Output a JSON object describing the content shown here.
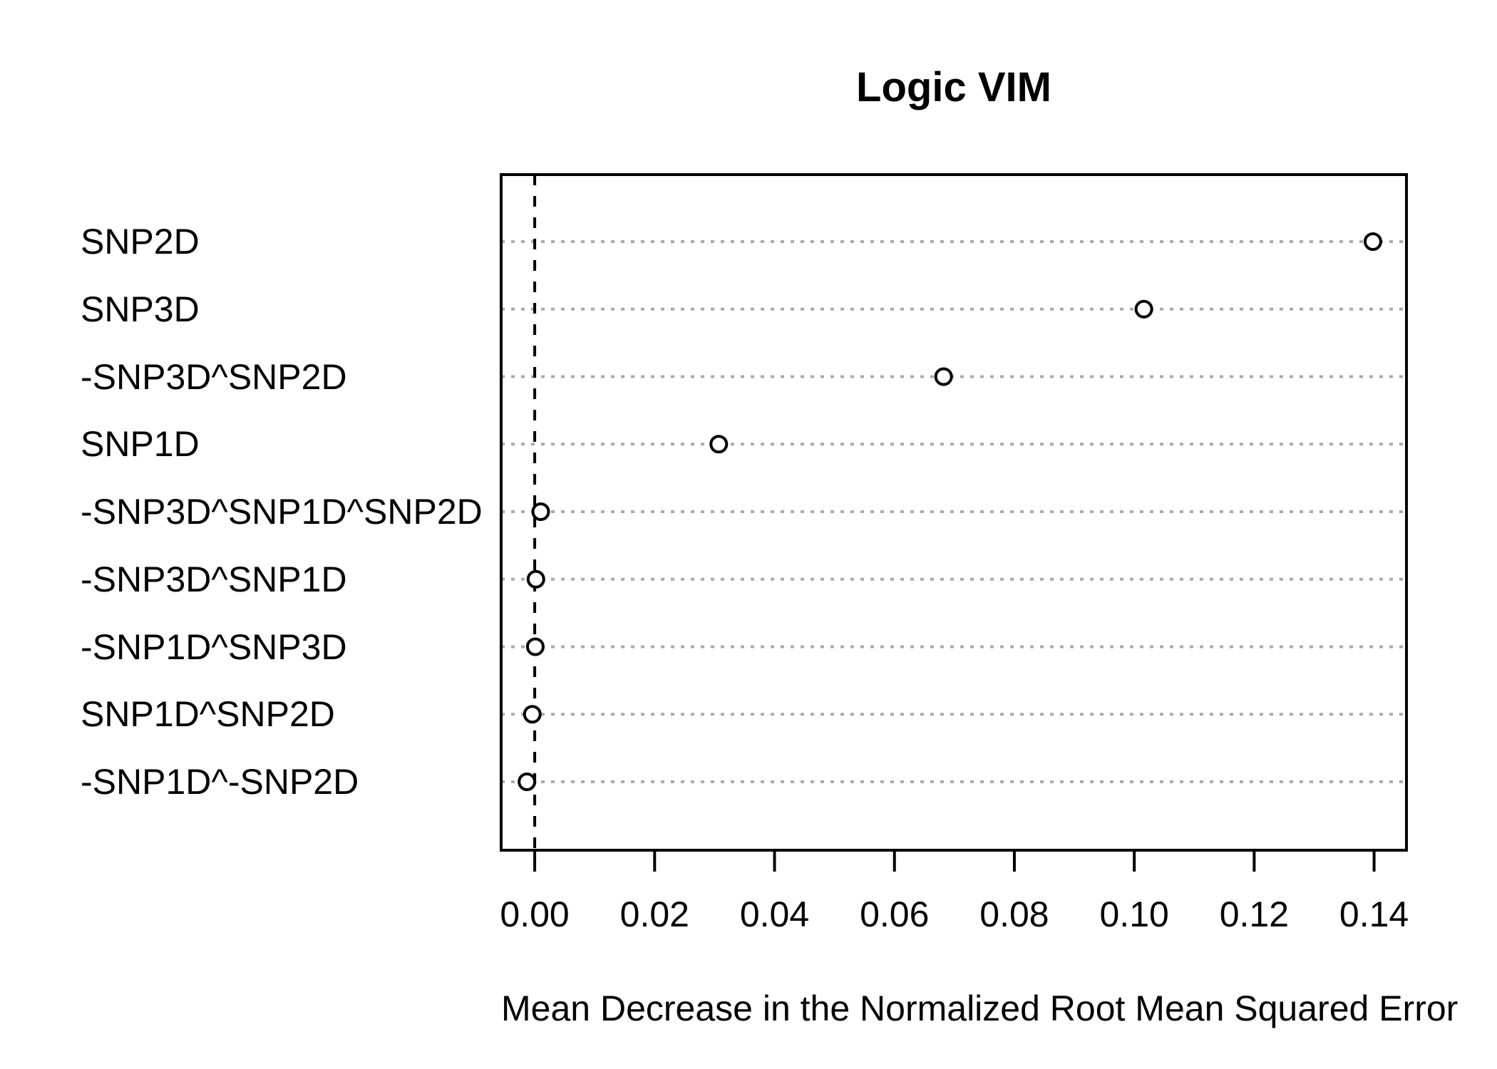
{
  "chart_data": {
    "type": "scatter",
    "variant": "dotchart",
    "title": "Logic VIM",
    "xlabel": "Mean Decrease in the Normalized Root Mean Squared Error",
    "categories_top_to_bottom": [
      "SNP2D",
      "SNP3D",
      "-SNP3D^SNP2D",
      "SNP1D",
      "-SNP3D^SNP1D^SNP2D",
      "-SNP3D^SNP1D",
      "-SNP1D^SNP3D",
      "SNP1D^SNP2D",
      "-SNP1D^-SNP2D"
    ],
    "values": [
      0.1398,
      0.1016,
      0.0682,
      0.0307,
      0.001,
      0.0002,
      0.0001,
      -0.0004,
      -0.0013
    ],
    "x_ticks": [
      0.0,
      0.02,
      0.04,
      0.06,
      0.08,
      0.1,
      0.12,
      0.14
    ],
    "x_tick_labels": [
      "0.00",
      "0.02",
      "0.04",
      "0.06",
      "0.08",
      "0.10",
      "0.12",
      "0.14"
    ],
    "xlim": [
      -0.0056,
      0.1454
    ],
    "reference_line_x": 0,
    "grid": "dotted-horizontal-per-category",
    "legend": "none",
    "marker": "open-circle",
    "colors": {
      "point_stroke": "#000000",
      "point_fill": "#ffffff",
      "grid": "#ABABAB",
      "axis": "#000000",
      "text": "#000000",
      "background": "#ffffff"
    }
  }
}
